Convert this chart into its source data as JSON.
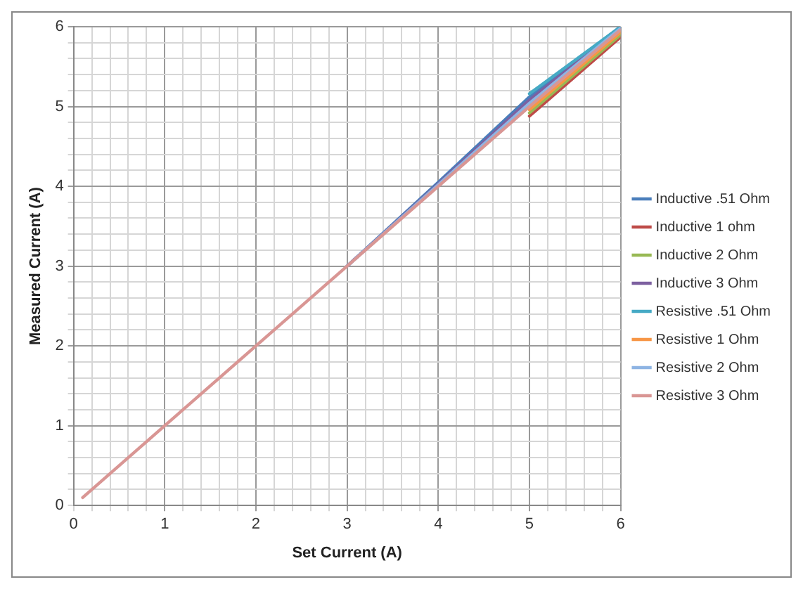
{
  "chart_data": {
    "type": "line",
    "xlabel": "Set Current (A)",
    "ylabel": "Measured Current (A)",
    "x": [
      0.1,
      1,
      2,
      3,
      4,
      5,
      6
    ],
    "xlim": [
      0,
      6
    ],
    "ylim": [
      0,
      6
    ],
    "xticks": [
      0,
      {
        "value": 0.2,
        "label": null
      },
      {
        "value": 0.4,
        "label": null
      },
      {
        "value": 0.6,
        "label": null
      },
      {
        "value": 0.8,
        "label": null
      },
      1,
      {
        "value": 1.2,
        "label": null
      },
      {
        "value": 1.4,
        "label": null
      },
      {
        "value": 1.6,
        "label": null
      },
      {
        "value": 1.8,
        "label": null
      },
      2,
      {
        "value": 2.2,
        "label": null
      },
      {
        "value": 2.4,
        "label": null
      },
      {
        "value": 2.6,
        "label": null
      },
      {
        "value": 2.8,
        "label": null
      },
      3,
      {
        "value": 3.2,
        "label": null
      },
      {
        "value": 3.4,
        "label": null
      },
      {
        "value": 3.6,
        "label": null
      },
      {
        "value": 3.8,
        "label": null
      },
      4,
      {
        "value": 4.2,
        "label": null
      },
      {
        "value": 4.4,
        "label": null
      },
      {
        "value": 4.6,
        "label": null
      },
      {
        "value": 4.8,
        "label": null
      },
      5,
      {
        "value": 5.2,
        "label": null
      },
      {
        "value": 5.4,
        "label": null
      },
      {
        "value": 5.6,
        "label": null
      },
      {
        "value": 5.8,
        "label": null
      },
      6
    ],
    "yticks": [
      0,
      {
        "value": 0.2,
        "label": null
      },
      {
        "value": 0.4,
        "label": null
      },
      {
        "value": 0.6,
        "label": null
      },
      {
        "value": 0.8,
        "label": null
      },
      1,
      {
        "value": 1.2,
        "label": null
      },
      {
        "value": 1.4,
        "label": null
      },
      {
        "value": 1.6,
        "label": null
      },
      {
        "value": 1.8,
        "label": null
      },
      2,
      {
        "value": 2.2,
        "label": null
      },
      {
        "value": 2.4,
        "label": null
      },
      {
        "value": 2.6,
        "label": null
      },
      {
        "value": 2.8,
        "label": null
      },
      3,
      {
        "value": 3.2,
        "label": null
      },
      {
        "value": 3.4,
        "label": null
      },
      {
        "value": 3.6,
        "label": null
      },
      {
        "value": 3.8,
        "label": null
      },
      4,
      {
        "value": 4.2,
        "label": null
      },
      {
        "value": 4.4,
        "label": null
      },
      {
        "value": 4.6,
        "label": null
      },
      {
        "value": 4.8,
        "label": null
      },
      5,
      {
        "value": 5.2,
        "label": null
      },
      {
        "value": 5.4,
        "label": null
      },
      {
        "value": 5.6,
        "label": null
      },
      {
        "value": 5.8,
        "label": null
      },
      6
    ],
    "grid": true,
    "legend": "right",
    "marker": "none",
    "line_style": "solid",
    "series": [
      {
        "name": "Inductive .51 Ohm",
        "color": "#4a7ebb",
        "values": [
          null,
          null,
          null,
          3,
          4.05,
          5.12,
          6
        ]
      },
      {
        "name": "Inductive 1 ohm",
        "color": "#be4b48",
        "values": [
          null,
          null,
          null,
          null,
          null,
          4.88,
          5.87
        ]
      },
      {
        "name": "Inductive 2 Ohm",
        "color": "#98b954",
        "values": [
          null,
          null,
          null,
          null,
          null,
          4.92,
          5.9
        ]
      },
      {
        "name": "Inductive 3 Ohm",
        "color": "#7d60a0",
        "values": [
          null,
          null,
          null,
          3,
          4.03,
          5.08,
          5.99
        ]
      },
      {
        "name": "Resistive .51 Ohm",
        "color": "#46aac5",
        "values": [
          null,
          null,
          null,
          null,
          null,
          5.16,
          6
        ]
      },
      {
        "name": "Resistive 1 Ohm",
        "color": "#f79646",
        "values": [
          null,
          null,
          null,
          null,
          null,
          4.96,
          5.93
        ]
      },
      {
        "name": "Resistive 2 Ohm",
        "color": "#8eb4e3",
        "values": [
          null,
          null,
          null,
          3,
          4.02,
          5.04,
          5.98
        ]
      },
      {
        "name": "Resistive 3 Ohm",
        "color": "#d99694",
        "values": [
          0.1,
          1,
          2,
          3,
          4,
          5,
          5.96
        ]
      }
    ]
  }
}
